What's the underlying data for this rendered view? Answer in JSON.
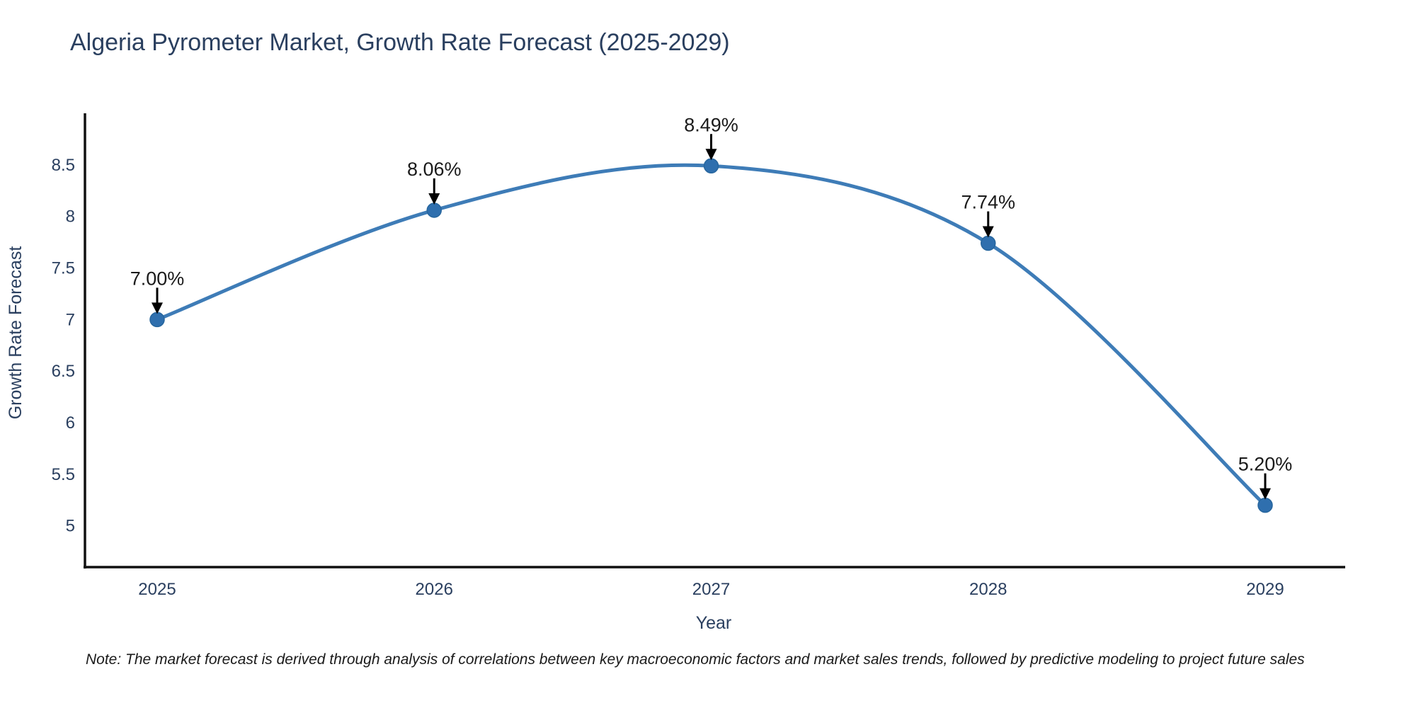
{
  "page": {
    "background": "#ffffff"
  },
  "note": "Note: The market forecast is derived through analysis of correlations between key macroeconomic factors and market sales trends, followed by predictive modeling to project future sales",
  "chart_data": {
    "type": "line",
    "line_shape": "spline",
    "title": "Algeria Pyrometer Market, Growth Rate Forecast (2025-2029)",
    "xlabel": "Year",
    "ylabel": "Growth Rate Forecast",
    "categories": [
      2025,
      2026,
      2027,
      2028,
      2029
    ],
    "values": [
      7.0,
      8.06,
      8.49,
      7.74,
      5.2
    ],
    "data_labels": [
      "7.00%",
      "8.06%",
      "8.49%",
      "7.74%",
      "5.20%"
    ],
    "yticks": [
      5,
      5.5,
      6,
      6.5,
      7,
      7.5,
      8,
      8.5
    ],
    "ylim": [
      4.6,
      9.0
    ],
    "grid": false,
    "legend": "none",
    "markers": true,
    "annotation_arrows": true,
    "colors": {
      "line": "#3e7cb7",
      "marker_fill": "#2f6fae",
      "marker_edge": "#27669e",
      "axis_line": "#111111",
      "tick_text": "#2a3f5f",
      "axis_title_text": "#2a3f5f",
      "title_text": "#2a3f5f",
      "annotation_text": "#1a1a1a",
      "arrow": "#000000",
      "background": "#ffffff"
    }
  }
}
